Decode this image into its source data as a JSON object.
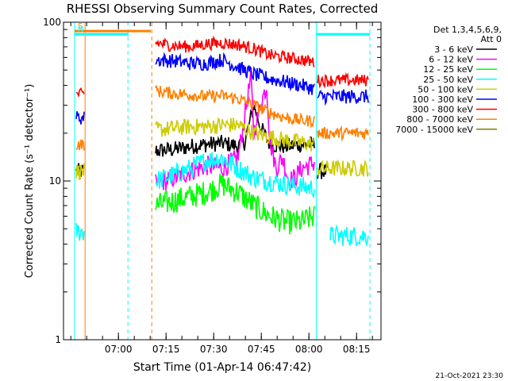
{
  "chart_data": {
    "type": "line",
    "title": "RHESSI Observing Summary Count Rates, Corrected",
    "xlabel": "Start Time (01-Apr-14 06:47:42)",
    "ylabel": "Corrected Count Rate (s⁻¹ detector⁻¹)",
    "y_scale": "log",
    "ylim": [
      1,
      100
    ],
    "y_ticks": [
      "1",
      "10",
      "100"
    ],
    "x_range_minutes": [
      -5,
      95
    ],
    "x_ticks": [
      "07:00",
      "07:15",
      "07:30",
      "07:45",
      "08:00",
      "08:15"
    ],
    "detector_label": [
      "Det 1,3,4,5,6,9,",
      "Att 0"
    ],
    "footer_date": "21-Oct-2021 23:30",
    "flags": [
      {
        "name": "S",
        "color": "#ff8000",
        "start": -1.5,
        "end": 22.5,
        "level": 88
      },
      {
        "name": "N",
        "color": "#00ffff",
        "start": -1.5,
        "end": 15.5,
        "level": 84
      },
      {
        "name": "",
        "color": "#00ffff",
        "start": 74.5,
        "end": 91.5,
        "level": 84
      }
    ],
    "markers": [
      {
        "color": "#00ffff",
        "x": -1.5,
        "style": "solid"
      },
      {
        "color": "#ff8000",
        "x": 1.8,
        "style": "solid"
      },
      {
        "color": "#00ffff",
        "x": 15.3,
        "style": "dashed"
      },
      {
        "color": "#ff8000",
        "x": 22.8,
        "style": "dashed"
      },
      {
        "color": "#00ffff",
        "x": 74.6,
        "style": "solid"
      },
      {
        "color": "#00ffff",
        "x": 91.5,
        "style": "dashed"
      }
    ],
    "series": [
      {
        "name": "3 - 6 keV",
        "color": "#000000",
        "noise": 0.04,
        "segments": [
          [
            -1,
            1.5,
            11.5,
            11.5
          ],
          [
            24,
            74,
            15.5,
            17
          ],
          [
            75,
            78,
            11.5,
            11.5
          ]
        ],
        "points": [
          [
            24,
            15.5
          ],
          [
            30,
            15.8
          ],
          [
            35,
            16.5
          ],
          [
            40,
            17
          ],
          [
            45,
            17.3
          ],
          [
            50,
            16.6
          ],
          [
            52,
            17.5
          ],
          [
            55,
            30
          ],
          [
            57,
            22
          ],
          [
            60,
            17
          ],
          [
            65,
            16.5
          ],
          [
            70,
            17
          ],
          [
            74,
            17
          ]
        ]
      },
      {
        "name": "6 - 12 keV",
        "color": "#ff00ff",
        "noise": 0.05,
        "segments": [
          [
            24,
            74,
            9.5,
            12
          ]
        ],
        "points": [
          [
            24,
            9.5
          ],
          [
            30,
            10.5
          ],
          [
            35,
            11.5
          ],
          [
            40,
            12.5
          ],
          [
            45,
            12
          ],
          [
            50,
            14
          ],
          [
            52,
            25
          ],
          [
            54,
            45
          ],
          [
            55,
            20
          ],
          [
            57,
            30
          ],
          [
            59,
            40
          ],
          [
            60,
            18
          ],
          [
            62,
            12
          ],
          [
            64,
            14
          ],
          [
            66,
            10
          ],
          [
            68,
            10.5
          ],
          [
            70,
            12
          ],
          [
            72,
            12.5
          ],
          [
            74,
            13
          ]
        ]
      },
      {
        "name": "12 - 25 keV",
        "color": "#00ff00",
        "noise": 0.06,
        "segments": [
          [
            24,
            74,
            7,
            7
          ]
        ],
        "points": [
          [
            24,
            7
          ],
          [
            30,
            7.5
          ],
          [
            35,
            8
          ],
          [
            40,
            8.5
          ],
          [
            45,
            9.5
          ],
          [
            50,
            8.5
          ],
          [
            55,
            7
          ],
          [
            60,
            6
          ],
          [
            65,
            5.5
          ],
          [
            70,
            5.5
          ],
          [
            74,
            6
          ]
        ]
      },
      {
        "name": "25 - 50 keV",
        "color": "#00ffff",
        "noise": 0.05,
        "segments": [
          [
            -1,
            1.5,
            4.8,
            4.8
          ],
          [
            24,
            74,
            10.5,
            10.5
          ],
          [
            79,
            91,
            4.5,
            4.5
          ]
        ],
        "points": [
          [
            24,
            10
          ],
          [
            30,
            11
          ],
          [
            35,
            12
          ],
          [
            40,
            13.5
          ],
          [
            45,
            14
          ],
          [
            50,
            12
          ],
          [
            55,
            10.5
          ],
          [
            60,
            10
          ],
          [
            65,
            9.5
          ],
          [
            70,
            9.2
          ],
          [
            74,
            9
          ]
        ]
      },
      {
        "name": "50 - 100 keV",
        "color": "#cccc00",
        "noise": 0.04,
        "segments": [
          [
            -1,
            1.5,
            11.5,
            11.5
          ],
          [
            24,
            74,
            21,
            21
          ],
          [
            75,
            91,
            12,
            12
          ]
        ],
        "points": [
          [
            24,
            21
          ],
          [
            30,
            21.5
          ],
          [
            35,
            22
          ],
          [
            40,
            22
          ],
          [
            45,
            22.5
          ],
          [
            50,
            22.5
          ],
          [
            55,
            20
          ],
          [
            60,
            19
          ],
          [
            65,
            18
          ],
          [
            70,
            17.5
          ],
          [
            74,
            17
          ]
        ]
      },
      {
        "name": "100 - 300 keV",
        "color": "#0000ff",
        "noise": 0.035,
        "segments": [
          [
            -1,
            1.5,
            25,
            25
          ],
          [
            24,
            74,
            47,
            47
          ],
          [
            75,
            91,
            34,
            34
          ]
        ],
        "points": [
          [
            24,
            58
          ],
          [
            30,
            57
          ],
          [
            35,
            55
          ],
          [
            40,
            55
          ],
          [
            45,
            58
          ],
          [
            50,
            52
          ],
          [
            55,
            47
          ],
          [
            60,
            44
          ],
          [
            65,
            42
          ],
          [
            70,
            40
          ],
          [
            74,
            38
          ]
        ]
      },
      {
        "name": "300 - 800 keV",
        "color": "#ff0000",
        "noise": 0.03,
        "segments": [
          [
            -1,
            1.5,
            35,
            35
          ],
          [
            24,
            74,
            66,
            66
          ],
          [
            75,
            91,
            43,
            43
          ]
        ],
        "points": [
          [
            24,
            74
          ],
          [
            30,
            71
          ],
          [
            35,
            70
          ],
          [
            40,
            73
          ],
          [
            45,
            74
          ],
          [
            50,
            72
          ],
          [
            55,
            68
          ],
          [
            60,
            62
          ],
          [
            65,
            60
          ],
          [
            70,
            58
          ],
          [
            74,
            56
          ]
        ]
      },
      {
        "name": "800 - 7000 keV",
        "color": "#ff8000",
        "noise": 0.03,
        "segments": [
          [
            -1,
            1.5,
            17,
            17
          ],
          [
            24,
            74,
            33,
            33
          ],
          [
            75,
            91,
            20,
            20
          ]
        ],
        "points": [
          [
            24,
            37
          ],
          [
            30,
            35.5
          ],
          [
            35,
            35
          ],
          [
            40,
            34
          ],
          [
            45,
            34.5
          ],
          [
            50,
            33
          ],
          [
            55,
            30
          ],
          [
            60,
            27
          ],
          [
            65,
            25
          ],
          [
            70,
            24
          ],
          [
            74,
            24
          ]
        ]
      },
      {
        "name": "7000 - 15000 keV",
        "color": "#808000",
        "noise": 0,
        "segments": [],
        "points": []
      }
    ]
  }
}
